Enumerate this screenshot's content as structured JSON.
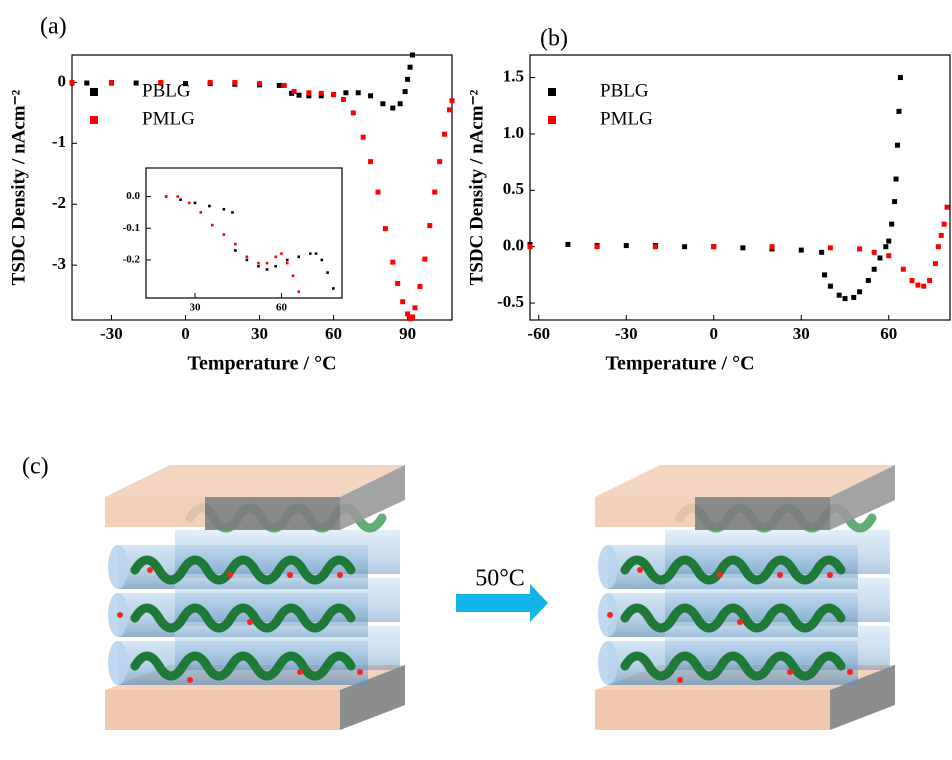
{
  "chart_data": [
    {
      "type": "scatter",
      "panel_label": "(a)",
      "x_label": "Temperature / °C",
      "y_label": "TSDC Density / nAcm⁻²",
      "xlim": [
        -46,
        108
      ],
      "xticks": [
        -30,
        0,
        30,
        60,
        90
      ],
      "ylim": [
        -3.9,
        0.45
      ],
      "yticks": [
        0,
        -1,
        -2,
        -3
      ],
      "legend": "upper left",
      "series": [
        {
          "name": "PBLG",
          "color": "#000000",
          "x": [
            -46,
            -40,
            -30,
            -20,
            -10,
            0,
            10,
            20,
            30,
            38,
            43,
            46,
            50,
            55,
            60,
            65,
            70,
            75,
            80,
            84,
            87,
            89,
            90,
            91,
            92
          ],
          "values": [
            -0.01,
            -0.01,
            -0.01,
            -0.01,
            -0.01,
            -0.02,
            -0.02,
            -0.03,
            -0.04,
            -0.05,
            -0.18,
            -0.21,
            -0.22,
            -0.22,
            -0.2,
            -0.17,
            -0.17,
            -0.22,
            -0.35,
            -0.42,
            -0.35,
            -0.15,
            0.05,
            0.25,
            0.45
          ]
        },
        {
          "name": "PMLG",
          "color": "#ff0000",
          "x": [
            -46,
            -30,
            -10,
            10,
            20,
            30,
            40,
            44,
            50,
            55,
            60,
            64,
            68,
            72,
            75,
            78,
            81,
            84,
            86,
            88,
            90,
            91,
            92,
            93,
            95,
            97,
            99,
            101,
            103,
            105,
            107,
            108
          ],
          "values": [
            0,
            0,
            0,
            0,
            0,
            -0.02,
            -0.05,
            -0.15,
            -0.17,
            -0.18,
            -0.2,
            -0.28,
            -0.5,
            -0.9,
            -1.3,
            -1.8,
            -2.4,
            -2.95,
            -3.3,
            -3.6,
            -3.8,
            -3.88,
            -3.85,
            -3.7,
            -3.35,
            -2.9,
            -2.35,
            -1.8,
            -1.3,
            -0.85,
            -0.45,
            -0.3
          ]
        }
      ]
    },
    {
      "type": "scatter",
      "xlim": [
        13,
        81
      ],
      "xticks": [
        30,
        60
      ],
      "ylim": [
        -0.32,
        0.09
      ],
      "yticks": [
        {
          "value": 0,
          "label": "0.0"
        },
        -0.1,
        -0.2
      ],
      "series": [
        {
          "color": "#000000",
          "x": [
            20,
            25,
            30,
            35,
            40,
            43,
            44,
            48,
            52,
            55,
            58,
            62,
            66,
            70,
            72,
            74,
            76,
            78
          ],
          "values": [
            0.0,
            -0.01,
            -0.02,
            -0.03,
            -0.04,
            -0.05,
            -0.17,
            -0.2,
            -0.22,
            -0.23,
            -0.22,
            -0.2,
            -0.19,
            -0.18,
            -0.18,
            -0.2,
            -0.24,
            -0.29
          ]
        },
        {
          "color": "#ff0000",
          "x": [
            20,
            24,
            28,
            32,
            36,
            40,
            44,
            48,
            52,
            55,
            58,
            60,
            62,
            64,
            66
          ],
          "values": [
            0.0,
            0.0,
            -0.02,
            -0.05,
            -0.09,
            -0.12,
            -0.15,
            -0.19,
            -0.21,
            -0.21,
            -0.19,
            -0.18,
            -0.21,
            -0.25,
            -0.3
          ]
        }
      ]
    },
    {
      "type": "scatter",
      "panel_label": "(b)",
      "x_label": "Temperature / °C",
      "y_label": "TSDC Density / nAcm⁻²",
      "xlim": [
        -63,
        81
      ],
      "xticks": [
        -60,
        -30,
        0,
        30,
        60
      ],
      "ylim": [
        -0.65,
        1.7
      ],
      "yticks": [
        1.5,
        {
          "value": 1,
          "label": "1.0"
        },
        0.5,
        {
          "value": 0,
          "label": "0.0"
        },
        -0.5
      ],
      "legend": "upper left",
      "series": [
        {
          "name": "PBLG",
          "color": "#000000",
          "x": [
            -63,
            -50,
            -40,
            -30,
            -20,
            -10,
            0,
            10,
            20,
            30,
            37,
            38,
            40,
            43,
            45,
            48,
            50,
            53,
            55,
            57,
            59,
            60,
            61,
            62,
            62.5,
            63,
            63.5,
            64
          ],
          "values": [
            0.02,
            0.02,
            0.01,
            0.01,
            0.01,
            0,
            0,
            -0.01,
            -0.02,
            -0.03,
            -0.05,
            -0.25,
            -0.35,
            -0.43,
            -0.46,
            -0.45,
            -0.4,
            -0.3,
            -0.2,
            -0.1,
            0,
            0.05,
            0.2,
            0.4,
            0.6,
            0.9,
            1.2,
            1.5
          ]
        },
        {
          "name": "PMLG",
          "color": "#ff0000",
          "x": [
            -63,
            -40,
            -20,
            0,
            20,
            40,
            50,
            55,
            60,
            65,
            68,
            70,
            72,
            74,
            76,
            77,
            78,
            79,
            80
          ],
          "values": [
            0,
            0,
            0,
            0,
            0,
            -0.01,
            -0.02,
            -0.05,
            -0.08,
            -0.2,
            -0.3,
            -0.34,
            -0.35,
            -0.3,
            -0.15,
            0,
            0.1,
            0.2,
            0.35
          ]
        }
      ]
    }
  ],
  "diagram": {
    "panel_label": "(c)",
    "arrow_label": "50°C"
  }
}
